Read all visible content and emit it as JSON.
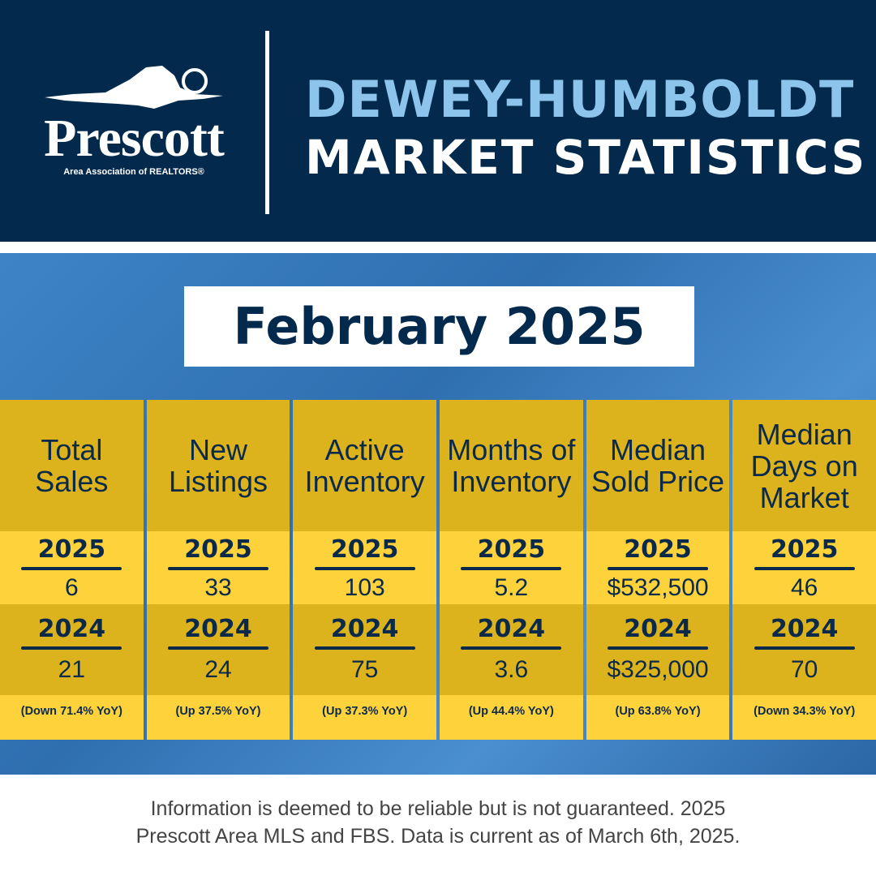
{
  "logo": {
    "name": "Prescott",
    "subtitle": "Area Association of REALTORS®"
  },
  "header": {
    "line1": "DEWEY-HUMBOLDT",
    "line2": "MARKET STATISTICS"
  },
  "month": "February 2025",
  "stats": [
    {
      "label": "Total Sales",
      "year_current": "2025",
      "value_current": "6",
      "year_prior": "2024",
      "value_prior": "21",
      "change": "(Down 71.4% YoY)"
    },
    {
      "label": "New Listings",
      "year_current": "2025",
      "value_current": "33",
      "year_prior": "2024",
      "value_prior": "24",
      "change": "(Up 37.5% YoY)"
    },
    {
      "label": "Active Inventory",
      "year_current": "2025",
      "value_current": "103",
      "year_prior": "2024",
      "value_prior": "75",
      "change": "(Up 37.3% YoY)"
    },
    {
      "label": "Months of Inventory",
      "year_current": "2025",
      "value_current": "5.2",
      "year_prior": "2024",
      "value_prior": "3.6",
      "change": "(Up 44.4% YoY)"
    },
    {
      "label": "Median Sold Price",
      "year_current": "2025",
      "value_current": "$532,500",
      "year_prior": "2024",
      "value_prior": "$325,000",
      "change": "(Up 63.8% YoY)"
    },
    {
      "label": "Median Days on Market",
      "year_current": "2025",
      "value_current": "46",
      "year_prior": "2024",
      "value_prior": "70",
      "change": "(Down 34.3% YoY)"
    }
  ],
  "footer": {
    "line1": "Information is deemed to be reliable but is not guaranteed. 2025",
    "line2": "Prescott Area MLS and FBS. Data is current as of March 6th, 2025."
  },
  "colors": {
    "navy": "#032a4d",
    "light_blue": "#8cc4ec",
    "gold_dark": "#dcb31d",
    "gold_light": "#fdd23b",
    "photo_blue": "#3d84c6"
  }
}
